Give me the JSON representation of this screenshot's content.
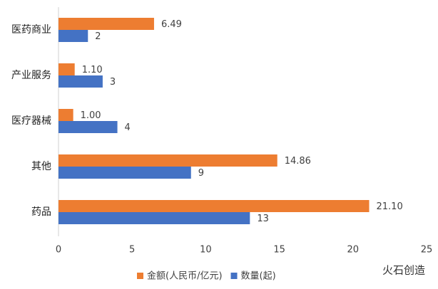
{
  "chart_data": {
    "type": "hbar",
    "categories": [
      "医药商业",
      "产业服务",
      "医疗器械",
      "其他",
      "药品"
    ],
    "series": [
      {
        "name": "金额(人民币/亿元)",
        "color": "#ed7d31",
        "values": [
          6.49,
          1.1,
          1.0,
          14.86,
          21.1
        ],
        "value_labels": [
          "6.49",
          "1.10",
          "1.00",
          "14.86",
          "21.10"
        ]
      },
      {
        "name": "数量(起)",
        "color": "#4472c4",
        "values": [
          2,
          3,
          4,
          9,
          13
        ]
      }
    ],
    "xlim": [
      0,
      25
    ],
    "xticks": [
      0,
      5,
      10,
      15,
      20,
      25
    ],
    "grid": false,
    "legend": "bottom",
    "watermark": "火石创造"
  }
}
